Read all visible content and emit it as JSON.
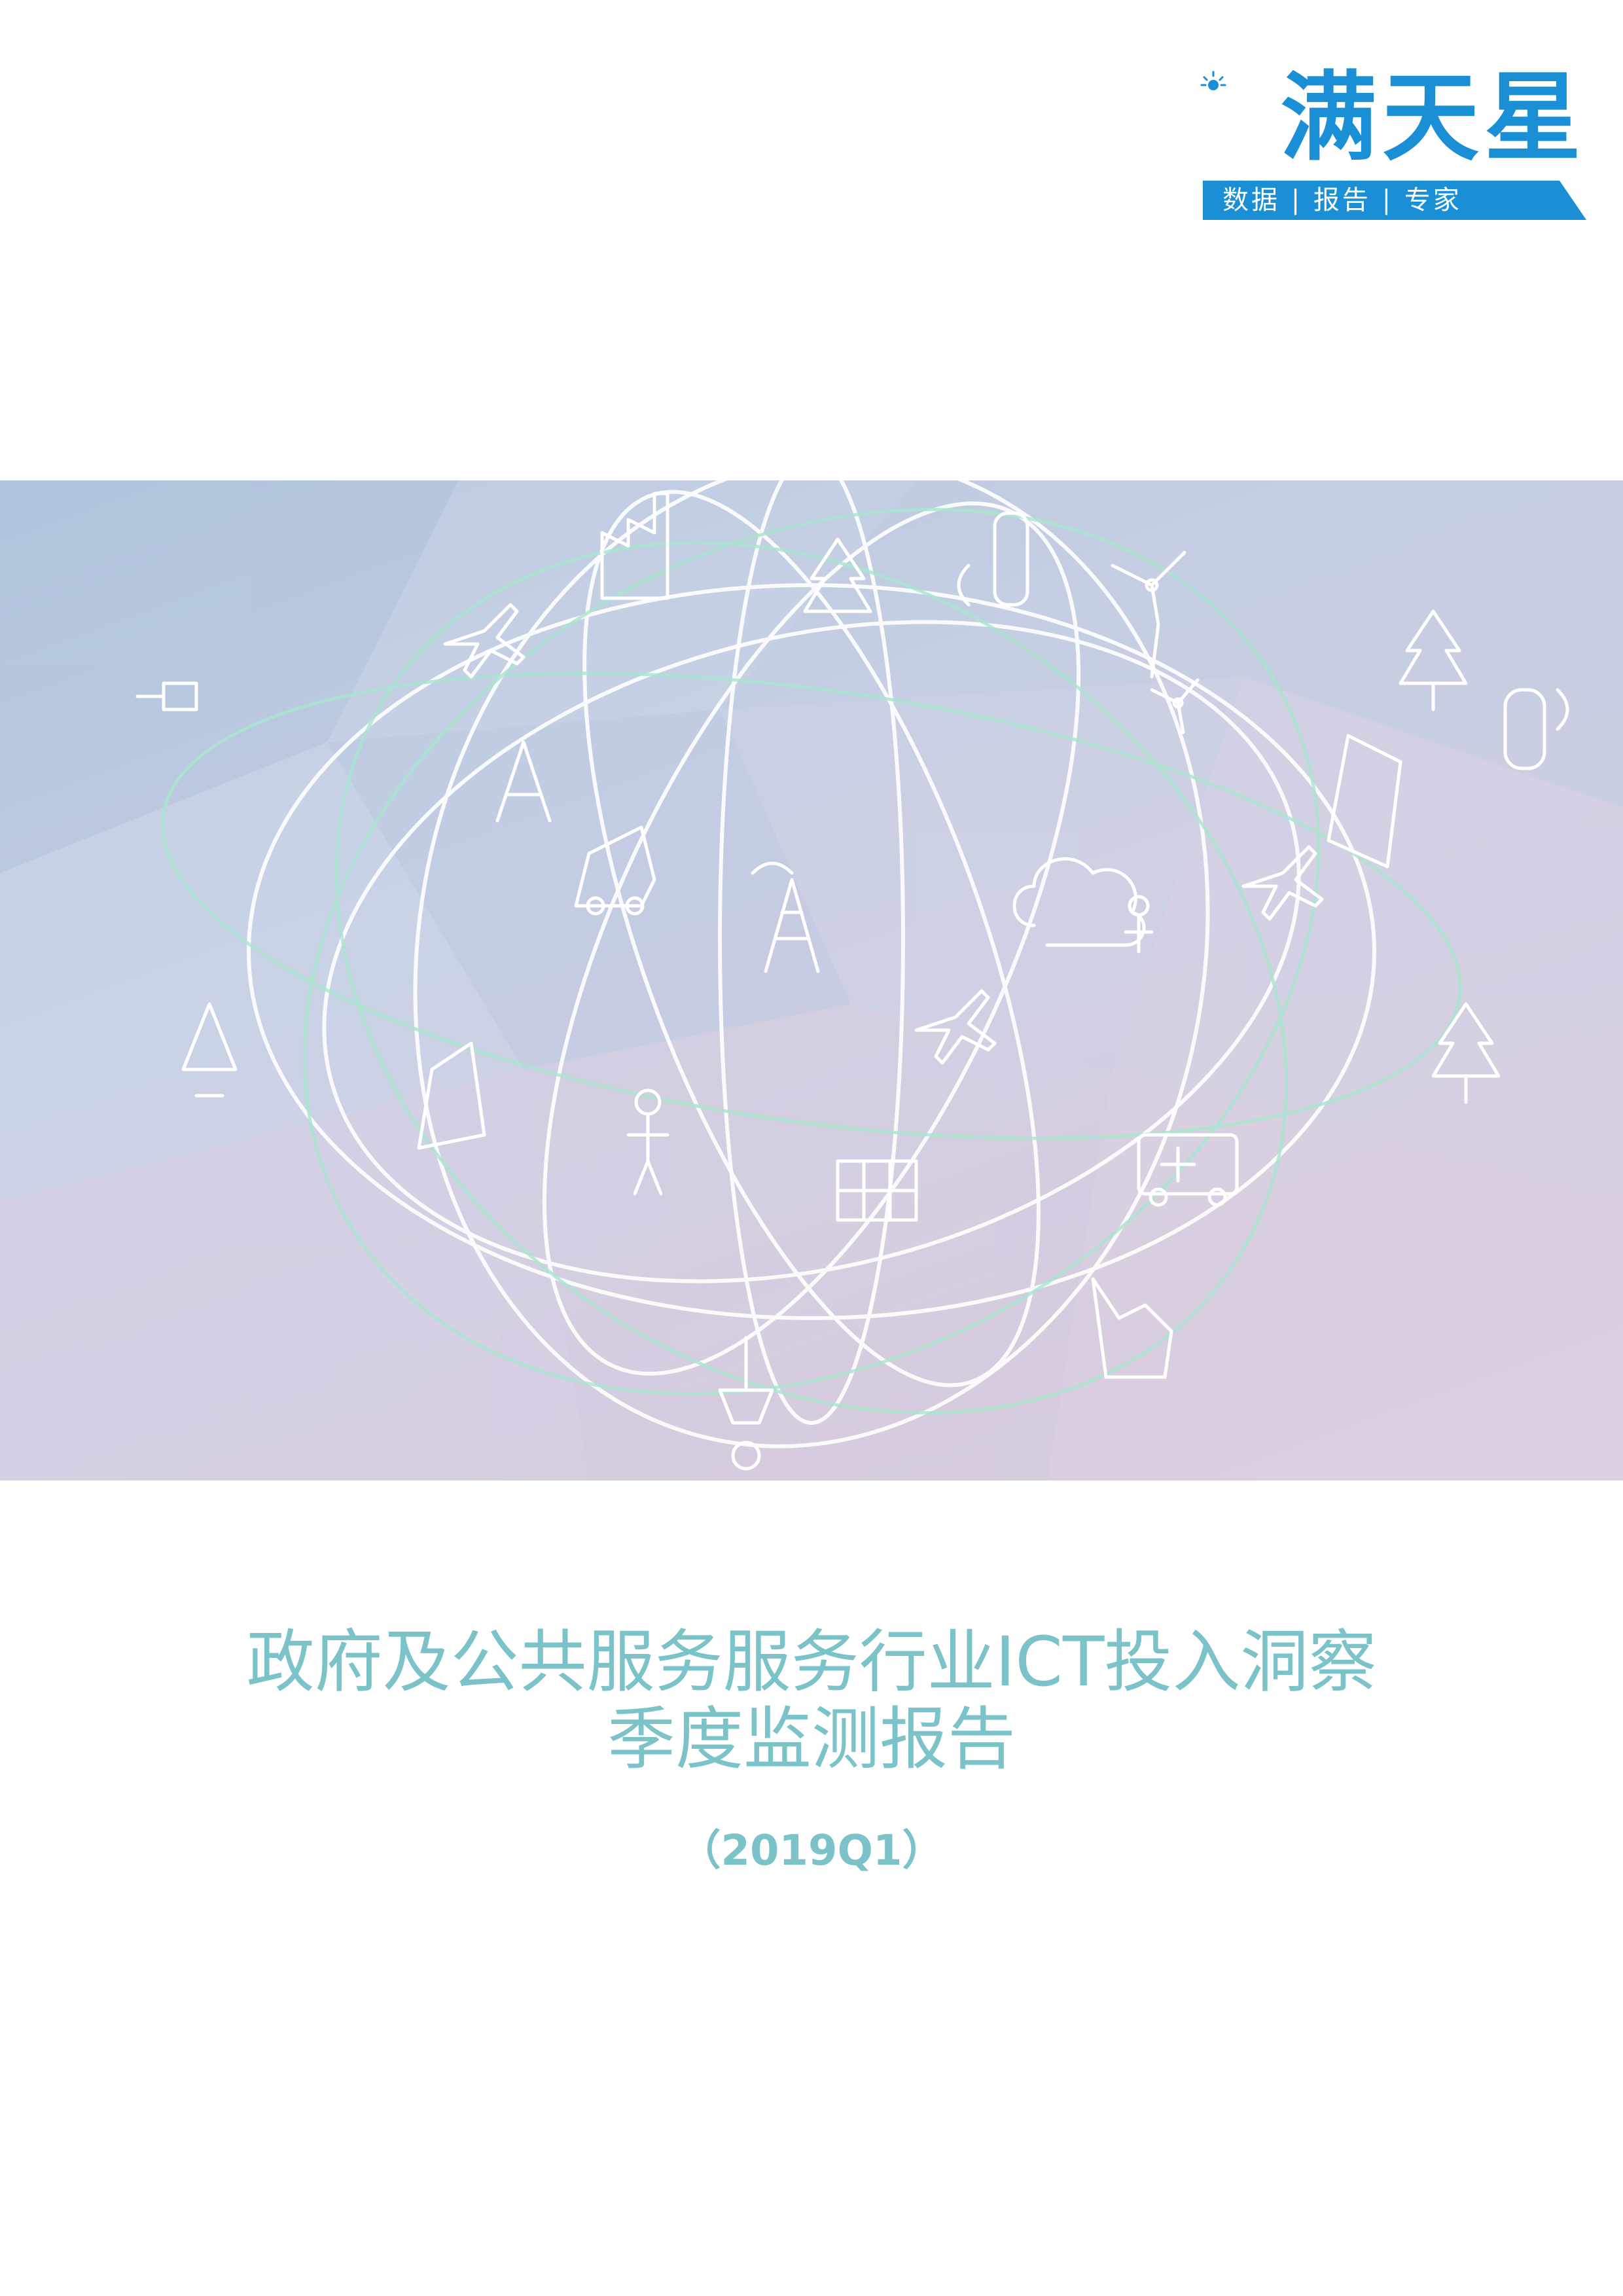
{
  "logo": {
    "brand": "满天星",
    "tagline": "数据 | 报告 | 专家",
    "brand_color": "#1a8fd6",
    "icon": "sun-icon"
  },
  "hero": {
    "description_icons": [
      "factory-icon",
      "airplane-icon",
      "wind-turbine-icon",
      "signal-tower-icon",
      "car-icon",
      "cloud-icon",
      "solar-panel-icon",
      "ambulance-icon",
      "tree-icon",
      "person-icon",
      "satellite-icon"
    ],
    "background_colors": [
      "#b7c7e0",
      "#d8cde0"
    ]
  },
  "report": {
    "title_line1": "政府及公共服务服务行业ICT投入洞察",
    "title_line2": "季度监测报告",
    "period": "（2019Q1）",
    "title_color": "#7cc3c9"
  }
}
